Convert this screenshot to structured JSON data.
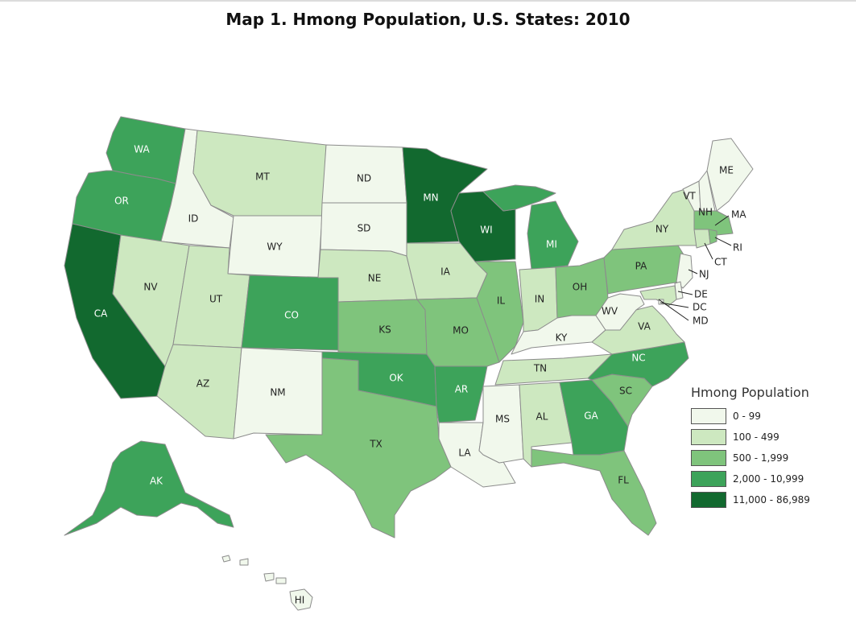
{
  "title": "Map 1. Hmong Population, U.S. States: 2010",
  "colors": {
    "c0": "#f1f8ec",
    "c1": "#cde8c0",
    "c2": "#7fc47c",
    "c3": "#3da35a",
    "c4": "#12692f"
  },
  "legend": {
    "title": "Hmong Population",
    "items": [
      {
        "label": "0 - 99",
        "class": "c0"
      },
      {
        "label": "100 - 499",
        "class": "c1"
      },
      {
        "label": "500 - 1,999",
        "class": "c2"
      },
      {
        "label": "2,000 - 10,999",
        "class": "c3"
      },
      {
        "label": "11,000 - 86,989",
        "class": "c4"
      }
    ]
  },
  "states": {
    "WA": {
      "label": "WA",
      "class": "c3"
    },
    "OR": {
      "label": "OR",
      "class": "c3"
    },
    "CA": {
      "label": "CA",
      "class": "c4"
    },
    "ID": {
      "label": "ID",
      "class": "c0"
    },
    "NV": {
      "label": "NV",
      "class": "c1"
    },
    "MT": {
      "label": "MT",
      "class": "c1"
    },
    "WY": {
      "label": "WY",
      "class": "c0"
    },
    "UT": {
      "label": "UT",
      "class": "c1"
    },
    "AZ": {
      "label": "AZ",
      "class": "c1"
    },
    "CO": {
      "label": "CO",
      "class": "c3"
    },
    "NM": {
      "label": "NM",
      "class": "c0"
    },
    "ND": {
      "label": "ND",
      "class": "c0"
    },
    "SD": {
      "label": "SD",
      "class": "c0"
    },
    "NE": {
      "label": "NE",
      "class": "c1"
    },
    "KS": {
      "label": "KS",
      "class": "c2"
    },
    "OK": {
      "label": "OK",
      "class": "c3"
    },
    "TX": {
      "label": "TX",
      "class": "c2"
    },
    "MN": {
      "label": "MN",
      "class": "c4"
    },
    "IA": {
      "label": "IA",
      "class": "c1"
    },
    "MO": {
      "label": "MO",
      "class": "c2"
    },
    "AR": {
      "label": "AR",
      "class": "c3"
    },
    "LA": {
      "label": "LA",
      "class": "c0"
    },
    "WI": {
      "label": "WI",
      "class": "c4"
    },
    "IL": {
      "label": "IL",
      "class": "c2"
    },
    "MI": {
      "label": "MI",
      "class": "c3"
    },
    "IN": {
      "label": "IN",
      "class": "c1"
    },
    "OH": {
      "label": "OH",
      "class": "c2"
    },
    "KY": {
      "label": "KY",
      "class": "c0"
    },
    "TN": {
      "label": "TN",
      "class": "c1"
    },
    "MS": {
      "label": "MS",
      "class": "c0"
    },
    "AL": {
      "label": "AL",
      "class": "c1"
    },
    "GA": {
      "label": "GA",
      "class": "c3"
    },
    "FL": {
      "label": "FL",
      "class": "c2"
    },
    "SC": {
      "label": "SC",
      "class": "c2"
    },
    "NC": {
      "label": "NC",
      "class": "c3"
    },
    "VA": {
      "label": "VA",
      "class": "c1"
    },
    "WV": {
      "label": "WV",
      "class": "c0"
    },
    "PA": {
      "label": "PA",
      "class": "c2"
    },
    "NY": {
      "label": "NY",
      "class": "c1"
    },
    "VT": {
      "label": "VT",
      "class": "c0"
    },
    "NH": {
      "label": "NH",
      "class": "c0"
    },
    "ME": {
      "label": "ME",
      "class": "c0"
    },
    "MA": {
      "label": "MA",
      "class": "c2"
    },
    "RI": {
      "label": "RI",
      "class": "c2"
    },
    "CT": {
      "label": "CT",
      "class": "c1"
    },
    "NJ": {
      "label": "NJ",
      "class": "c0"
    },
    "DE": {
      "label": "DE",
      "class": "c0"
    },
    "MD": {
      "label": "MD",
      "class": "c1"
    },
    "DC": {
      "label": "DC",
      "class": "c0"
    },
    "AK": {
      "label": "AK",
      "class": "c3"
    },
    "HI": {
      "label": "HI",
      "class": "c0"
    }
  }
}
